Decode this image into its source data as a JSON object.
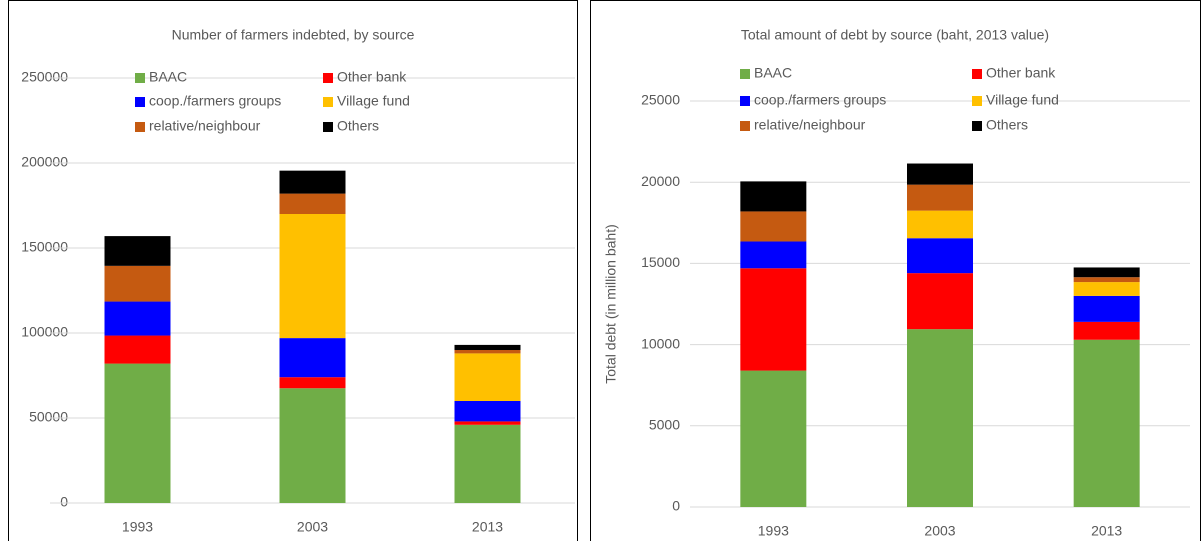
{
  "chart_data": [
    {
      "type": "stacked_bar",
      "title": "Number of farmers indebted, by source",
      "categories": [
        "1993",
        "2003",
        "2013"
      ],
      "series": [
        {
          "name": "BAAC",
          "color": "#70ad47",
          "values": [
            82000,
            67500,
            46000
          ]
        },
        {
          "name": "Other bank",
          "color": "#ff0000",
          "values": [
            16500,
            6500,
            2000
          ]
        },
        {
          "name": "coop./farmers groups",
          "color": "#0000ff",
          "values": [
            20000,
            23000,
            12000
          ]
        },
        {
          "name": "Village fund",
          "color": "#ffc000",
          "values": [
            0,
            73000,
            28000
          ]
        },
        {
          "name": "relative/neighbour",
          "color": "#c55a11",
          "values": [
            21000,
            12000,
            2000
          ]
        },
        {
          "name": "Others",
          "color": "#000000",
          "values": [
            17500,
            13500,
            3000
          ]
        }
      ],
      "ylim": [
        0,
        250000
      ],
      "yticks": [
        0,
        50000,
        100000,
        150000,
        200000,
        250000
      ],
      "grid": true
    },
    {
      "type": "stacked_bar",
      "title": "Total amount of debt by source (baht, 2013 value)",
      "y_label": "Total debt (in million baht)",
      "categories": [
        "1993",
        "2003",
        "2013"
      ],
      "series": [
        {
          "name": "BAAC",
          "color": "#70ad47",
          "values": [
            8400,
            10950,
            10300
          ]
        },
        {
          "name": "Other bank",
          "color": "#ff0000",
          "values": [
            6300,
            3450,
            1100
          ]
        },
        {
          "name": "coop./farmers groups",
          "color": "#0000ff",
          "values": [
            1650,
            2150,
            1600
          ]
        },
        {
          "name": "Village fund",
          "color": "#ffc000",
          "values": [
            0,
            1700,
            850
          ]
        },
        {
          "name": "relative/neighbour",
          "color": "#c55a11",
          "values": [
            1850,
            1600,
            300
          ]
        },
        {
          "name": "Others",
          "color": "#000000",
          "values": [
            1850,
            1300,
            600
          ]
        }
      ],
      "ylim": [
        0,
        25000
      ],
      "yticks": [
        0,
        5000,
        10000,
        15000,
        20000,
        25000
      ],
      "grid": true
    }
  ]
}
